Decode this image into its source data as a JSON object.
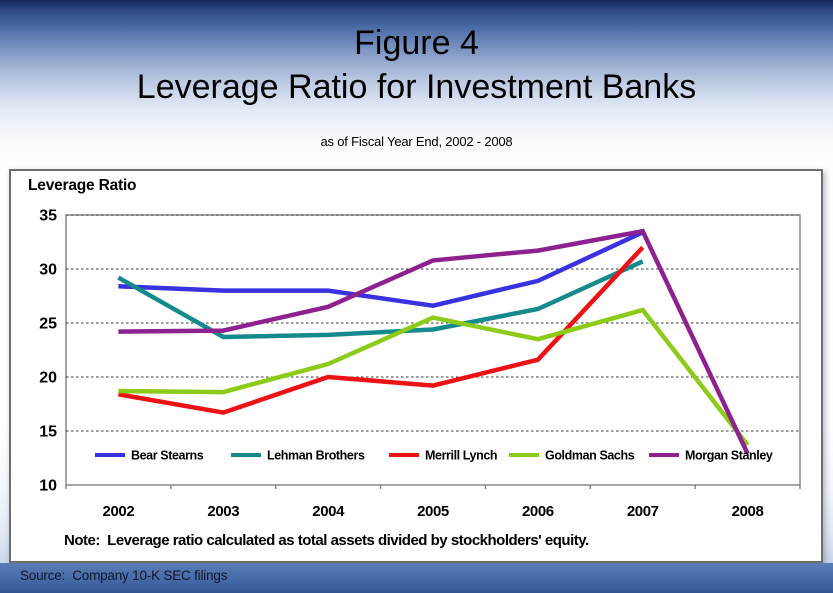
{
  "slide": {
    "title_line1": "Figure 4",
    "title_line2": "Leverage Ratio for Investment Banks",
    "subtitle": "as of Fiscal Year End, 2002 - 2008",
    "note": "Note:  Leverage ratio calculated as total assets divided by stockholders' equity.",
    "source": "Source:  Company 10-K SEC filings"
  },
  "chart_data": {
    "type": "line",
    "title": "Leverage Ratio",
    "x": [
      2002,
      2003,
      2004,
      2005,
      2006,
      2007,
      2008
    ],
    "series": [
      {
        "name": "Bear Stearns",
        "color": "#3832E0",
        "values": [
          28.4,
          28.0,
          28.0,
          26.6,
          28.9,
          33.4,
          null
        ]
      },
      {
        "name": "Lehman Brothers",
        "color": "#158A8C",
        "values": [
          29.2,
          23.7,
          23.9,
          24.4,
          26.3,
          30.7,
          null
        ]
      },
      {
        "name": "Merrill Lynch",
        "color": "#EE1214",
        "values": [
          18.4,
          16.7,
          20.0,
          19.2,
          21.6,
          32.0,
          null
        ]
      },
      {
        "name": "Goldman Sachs",
        "color": "#8DCB19",
        "values": [
          18.7,
          18.6,
          21.2,
          25.5,
          23.5,
          26.2,
          13.7
        ]
      },
      {
        "name": "Morgan Stanley",
        "color": "#8E2190",
        "values": [
          24.2,
          24.3,
          26.5,
          30.8,
          31.7,
          33.5,
          12.9
        ]
      }
    ],
    "ylim": [
      10,
      35
    ],
    "ytick_step": 5,
    "grid": "horizontal-dotted",
    "legend_position": "inside-bottom",
    "frame_color": "#808080",
    "gridline_color": "#3A3A3A"
  }
}
